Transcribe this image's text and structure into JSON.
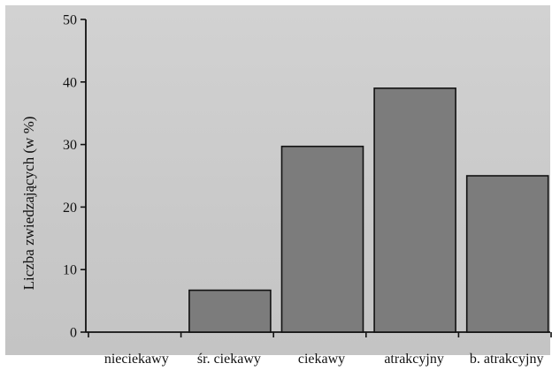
{
  "chart_data": {
    "type": "bar",
    "title": "",
    "xlabel": "",
    "ylabel": "Liczba zwiedzających (w %)",
    "categories": [
      "nieciekawy",
      "śr. ciekawy",
      "ciekawy",
      "atrakcyjny",
      "b. atrakcyjny"
    ],
    "values": [
      0,
      6.7,
      29.7,
      39,
      25
    ],
    "ylim": [
      0,
      50
    ],
    "yticks": [
      0,
      10,
      20,
      30,
      40,
      50
    ],
    "grid": false,
    "legend": "none",
    "colors": {
      "bar": "#7c7c7c",
      "outline": "#111111",
      "background": "#c9c9c9"
    }
  }
}
